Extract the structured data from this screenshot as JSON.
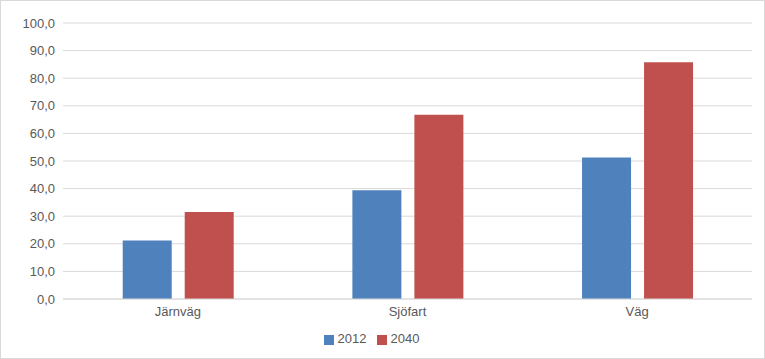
{
  "chart_data": {
    "type": "bar",
    "categories": [
      "Järnväg",
      "Sjöfart",
      "Väg"
    ],
    "series": [
      {
        "name": "2012",
        "color": "#4f81bd",
        "values": [
          21.2,
          39.4,
          51.3
        ]
      },
      {
        "name": "2040",
        "color": "#c0504d",
        "values": [
          31.5,
          66.8,
          85.8
        ]
      }
    ],
    "ylim": [
      0,
      100
    ],
    "yticks": [
      {
        "value": 0,
        "label": "0,0"
      },
      {
        "value": 10,
        "label": "10,0"
      },
      {
        "value": 20,
        "label": "20,0"
      },
      {
        "value": 30,
        "label": "30,0"
      },
      {
        "value": 40,
        "label": "40,0"
      },
      {
        "value": 50,
        "label": "50,0"
      },
      {
        "value": 60,
        "label": "60,0"
      },
      {
        "value": 70,
        "label": "70,0"
      },
      {
        "value": 80,
        "label": "80,0"
      },
      {
        "value": 90,
        "label": "90,0"
      },
      {
        "value": 100,
        "label": "100,0"
      }
    ],
    "grid": true,
    "legend": "bottom"
  }
}
